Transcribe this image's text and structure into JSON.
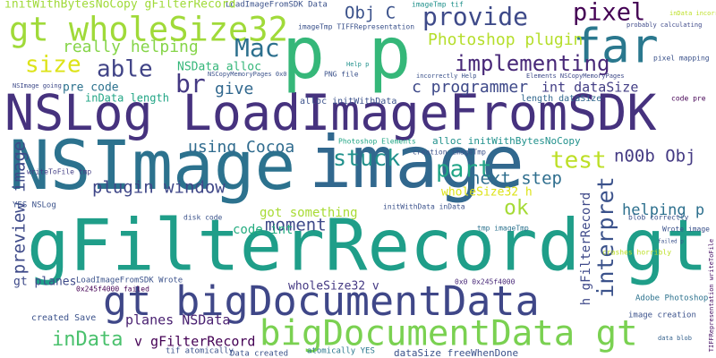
{
  "words": [
    "gFilterRecord gt",
    "NSLog LoadImageFromSDK",
    "NSImage",
    "image",
    "p p",
    "gt bigDocumentData",
    "bigDocumentData gt",
    "gt wholeSize32",
    "far",
    "pixel",
    "Obj C",
    "provide",
    "Mac",
    "Photoshop plugin",
    "implementing",
    "really helping",
    "size",
    "able",
    "NSData alloc",
    "br",
    "pre code",
    "give",
    "c programmer",
    "int dataSize",
    "inData length",
    "alloc initWithData",
    "length dataSize",
    "using Cocoa",
    "stuck",
    "test",
    "n00b Obj",
    "part",
    "next step",
    "plugin window",
    "wholeSize32 h",
    "got something",
    "ok",
    "moment",
    "helping p",
    "code int",
    "preview image",
    "interpret",
    "h gFilterRecord",
    "TIFFRepresentation writeToFile",
    "wholeSize32 v",
    "gt planes",
    "planes NSData",
    "inData",
    "v gFilterRecord",
    "created Save",
    "LoadImageFromSDK Wrote",
    "0x245f4000 failed",
    "tif atomically",
    "Data created",
    "atomically YES",
    "dataSize freeWhenDone",
    "0x0 0x245f4000",
    "image creation",
    "Adobe Photoshop",
    "data blob",
    "crashes horribly",
    "Wrote image",
    "failed p",
    "blob correctly",
    "tmp imageTmp",
    "initWithData inData",
    "disk code",
    "YES NSLog",
    "writeToFile tmp",
    "NSImage going",
    "Photoshop Elements",
    "alloc initWithBytesNoCopy",
    "creation imageTmp",
    "code pre",
    "pixel mapping",
    "probably calculating",
    "inData incorrectly",
    "Elements NSCopyMemoryPages",
    "incorrectly Help",
    "Help p",
    "PNG file",
    "NSCopyMemoryPages 0x0",
    "imageTmp TIFFRepresentation",
    "imageTmp tif",
    "LoadImageFromSDK Data",
    "initWithBytesNoCopy gFilterRecord"
  ]
}
